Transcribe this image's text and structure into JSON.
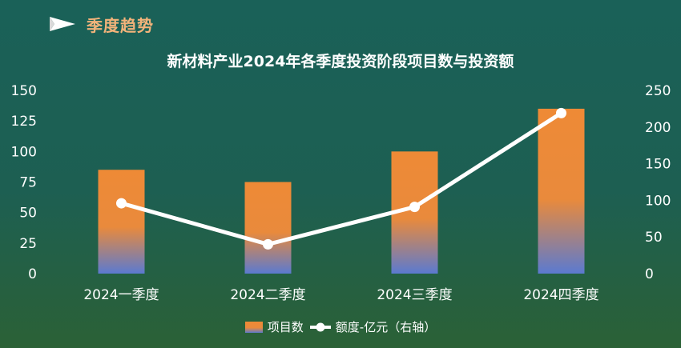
{
  "header": {
    "section_title": "季度趋势",
    "flag_icon": "pennant-flag-icon"
  },
  "colors": {
    "bar_top": "#ee8a36",
    "bar_bottom": "#5b7ad0",
    "line": "#ffffff",
    "title_accent": "#f2b37a"
  },
  "chart_data": {
    "type": "bar",
    "title": "新材料产业2024年各季度投资阶段项目数与投资额",
    "categories": [
      "2024一季度",
      "2024二季度",
      "2024三季度",
      "2024四季度"
    ],
    "series": [
      {
        "name": "项目数",
        "type": "bar",
        "axis": "left",
        "values": [
          85,
          75,
          100,
          135
        ]
      },
      {
        "name": "额度-亿元（右轴）",
        "type": "line",
        "axis": "right",
        "values": [
          96,
          40,
          91,
          219
        ]
      }
    ],
    "y_left": {
      "min": 0,
      "max": 150,
      "ticks": [
        0,
        25,
        50,
        75,
        100,
        125,
        150
      ]
    },
    "y_right": {
      "min": 0,
      "max": 250,
      "ticks": [
        0,
        50,
        100,
        150,
        200,
        250
      ]
    },
    "grid": false,
    "legend_position": "bottom"
  }
}
